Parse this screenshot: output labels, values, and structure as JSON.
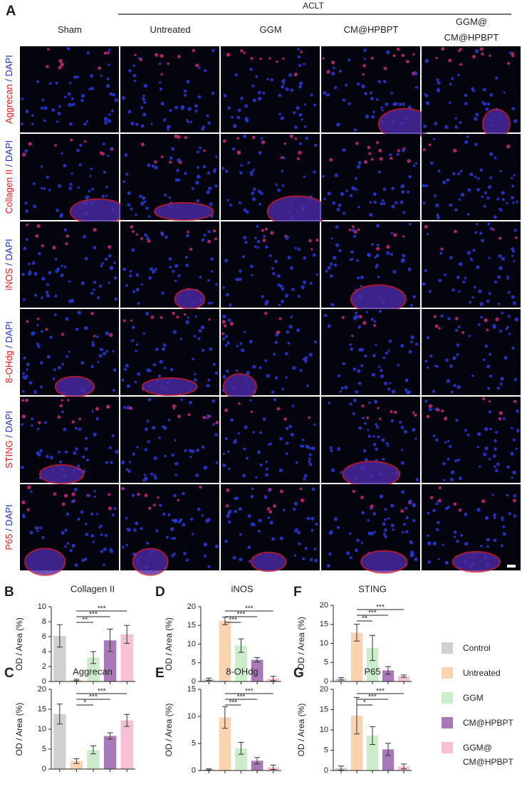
{
  "figure": {
    "panel_label": "A",
    "group_label": "ACLT",
    "columns": [
      "Sham",
      "Untreated",
      "GGM",
      "CM@HPBPT",
      "GGM@\nCM@HPBPT"
    ],
    "rows": [
      "Aggrecan",
      "Collagen II",
      "iNOS",
      "8-OHdg",
      "STING",
      "P65"
    ],
    "separator": " / ",
    "counterstain": "DAPI"
  },
  "chart_data": [
    {
      "type": "bar",
      "panel_label": "B",
      "title": "Collagen II",
      "y_label": "OD / Area (%)",
      "categories": [
        "Control",
        "Untreated",
        "GGM",
        "CM@HPBPT",
        "GGM@\nCM@HPBPT"
      ],
      "colors": [
        "#d0d0d0",
        "#fcd3b0",
        "#cdeccb",
        "#a878b8",
        "#f8c0d6"
      ],
      "values": [
        6.1,
        0.2,
        3.2,
        5.5,
        6.3
      ],
      "errors": [
        1.5,
        0.1,
        0.8,
        1.5,
        1.2
      ],
      "significance": [
        "**",
        "***",
        "***"
      ],
      "ylim": [
        0,
        10
      ],
      "yticks": [
        0,
        2,
        4,
        6,
        8,
        10
      ]
    },
    {
      "type": "bar",
      "panel_label": "C",
      "title": "Aggrecan",
      "y_label": "OD / Area (%)",
      "categories": [
        "Control",
        "Untreated",
        "GGM",
        "CM@HPBPT",
        "GGM@\nCM@HPBPT"
      ],
      "colors": [
        "#d0d0d0",
        "#fcd3b0",
        "#cdeccb",
        "#a878b8",
        "#f8c0d6"
      ],
      "values": [
        13.8,
        2.0,
        4.8,
        8.3,
        12.2
      ],
      "errors": [
        2.5,
        0.6,
        1.0,
        0.8,
        1.5
      ],
      "significance": [
        "*",
        "***",
        "***"
      ],
      "ylim": [
        0,
        20
      ],
      "yticks": [
        0,
        5,
        10,
        15,
        20
      ]
    },
    {
      "type": "bar",
      "panel_label": "D",
      "title": "iNOS",
      "y_label": "OD / Area (%)",
      "categories": [
        "Control",
        "Untreated",
        "GGM",
        "CM@HPBPT",
        "GGM@\nCM@HPBPT"
      ],
      "colors": [
        "#d0d0d0",
        "#fcd3b0",
        "#cdeccb",
        "#a878b8",
        "#f8c0d6"
      ],
      "values": [
        0.6,
        16.2,
        9.6,
        5.8,
        0.8
      ],
      "errors": [
        0.3,
        1.0,
        1.8,
        0.6,
        0.6
      ],
      "significance": [
        "***",
        "***",
        "***"
      ],
      "ylim": [
        0,
        20
      ],
      "yticks": [
        0,
        5,
        10,
        15,
        20
      ]
    },
    {
      "type": "bar",
      "panel_label": "E",
      "title": "8-OHdg",
      "y_label": "OD / Area (%)",
      "categories": [
        "Control",
        "Untreated",
        "GGM",
        "CM@HPBPT",
        "GGM@\nCM@HPBPT"
      ],
      "colors": [
        "#d0d0d0",
        "#fcd3b0",
        "#cdeccb",
        "#a878b8",
        "#f8c0d6"
      ],
      "values": [
        0.2,
        9.8,
        4.1,
        1.8,
        0.6
      ],
      "errors": [
        0.1,
        2.0,
        1.1,
        0.6,
        0.4
      ],
      "significance": [
        "***",
        "***",
        "***"
      ],
      "ylim": [
        0,
        15
      ],
      "yticks": [
        0,
        5,
        10,
        15
      ]
    },
    {
      "type": "bar",
      "panel_label": "F",
      "title": "STING",
      "y_label": "OD / Area (%)",
      "categories": [
        "Control",
        "Untreated",
        "GGM",
        "CM@HPBPT",
        "GGM@\nCM@HPBPT"
      ],
      "colors": [
        "#d0d0d0",
        "#fcd3b0",
        "#cdeccb",
        "#a878b8",
        "#f8c0d6"
      ],
      "values": [
        0.7,
        12.8,
        8.8,
        2.9,
        1.4
      ],
      "errors": [
        0.3,
        2.2,
        3.3,
        1.0,
        0.3
      ],
      "significance": [
        "**",
        "***",
        "***"
      ],
      "ylim": [
        0,
        20
      ],
      "yticks": [
        0,
        5,
        10,
        15,
        20
      ]
    },
    {
      "type": "bar",
      "panel_label": "G",
      "title": "P65",
      "y_label": "OD / Area (%)",
      "categories": [
        "Control",
        "Untreated",
        "GGM",
        "CM@HPBPT",
        "GGM@\nCM@HPBPT"
      ],
      "colors": [
        "#d0d0d0",
        "#fcd3b0",
        "#cdeccb",
        "#a878b8",
        "#f8c0d6"
      ],
      "values": [
        0.6,
        13.5,
        8.6,
        5.2,
        1.0
      ],
      "errors": [
        0.5,
        4.5,
        2.2,
        1.5,
        0.6
      ],
      "significance": [
        "*",
        "***",
        "***"
      ],
      "ylim": [
        0,
        20
      ],
      "yticks": [
        0,
        5,
        10,
        15,
        20
      ]
    }
  ]
}
